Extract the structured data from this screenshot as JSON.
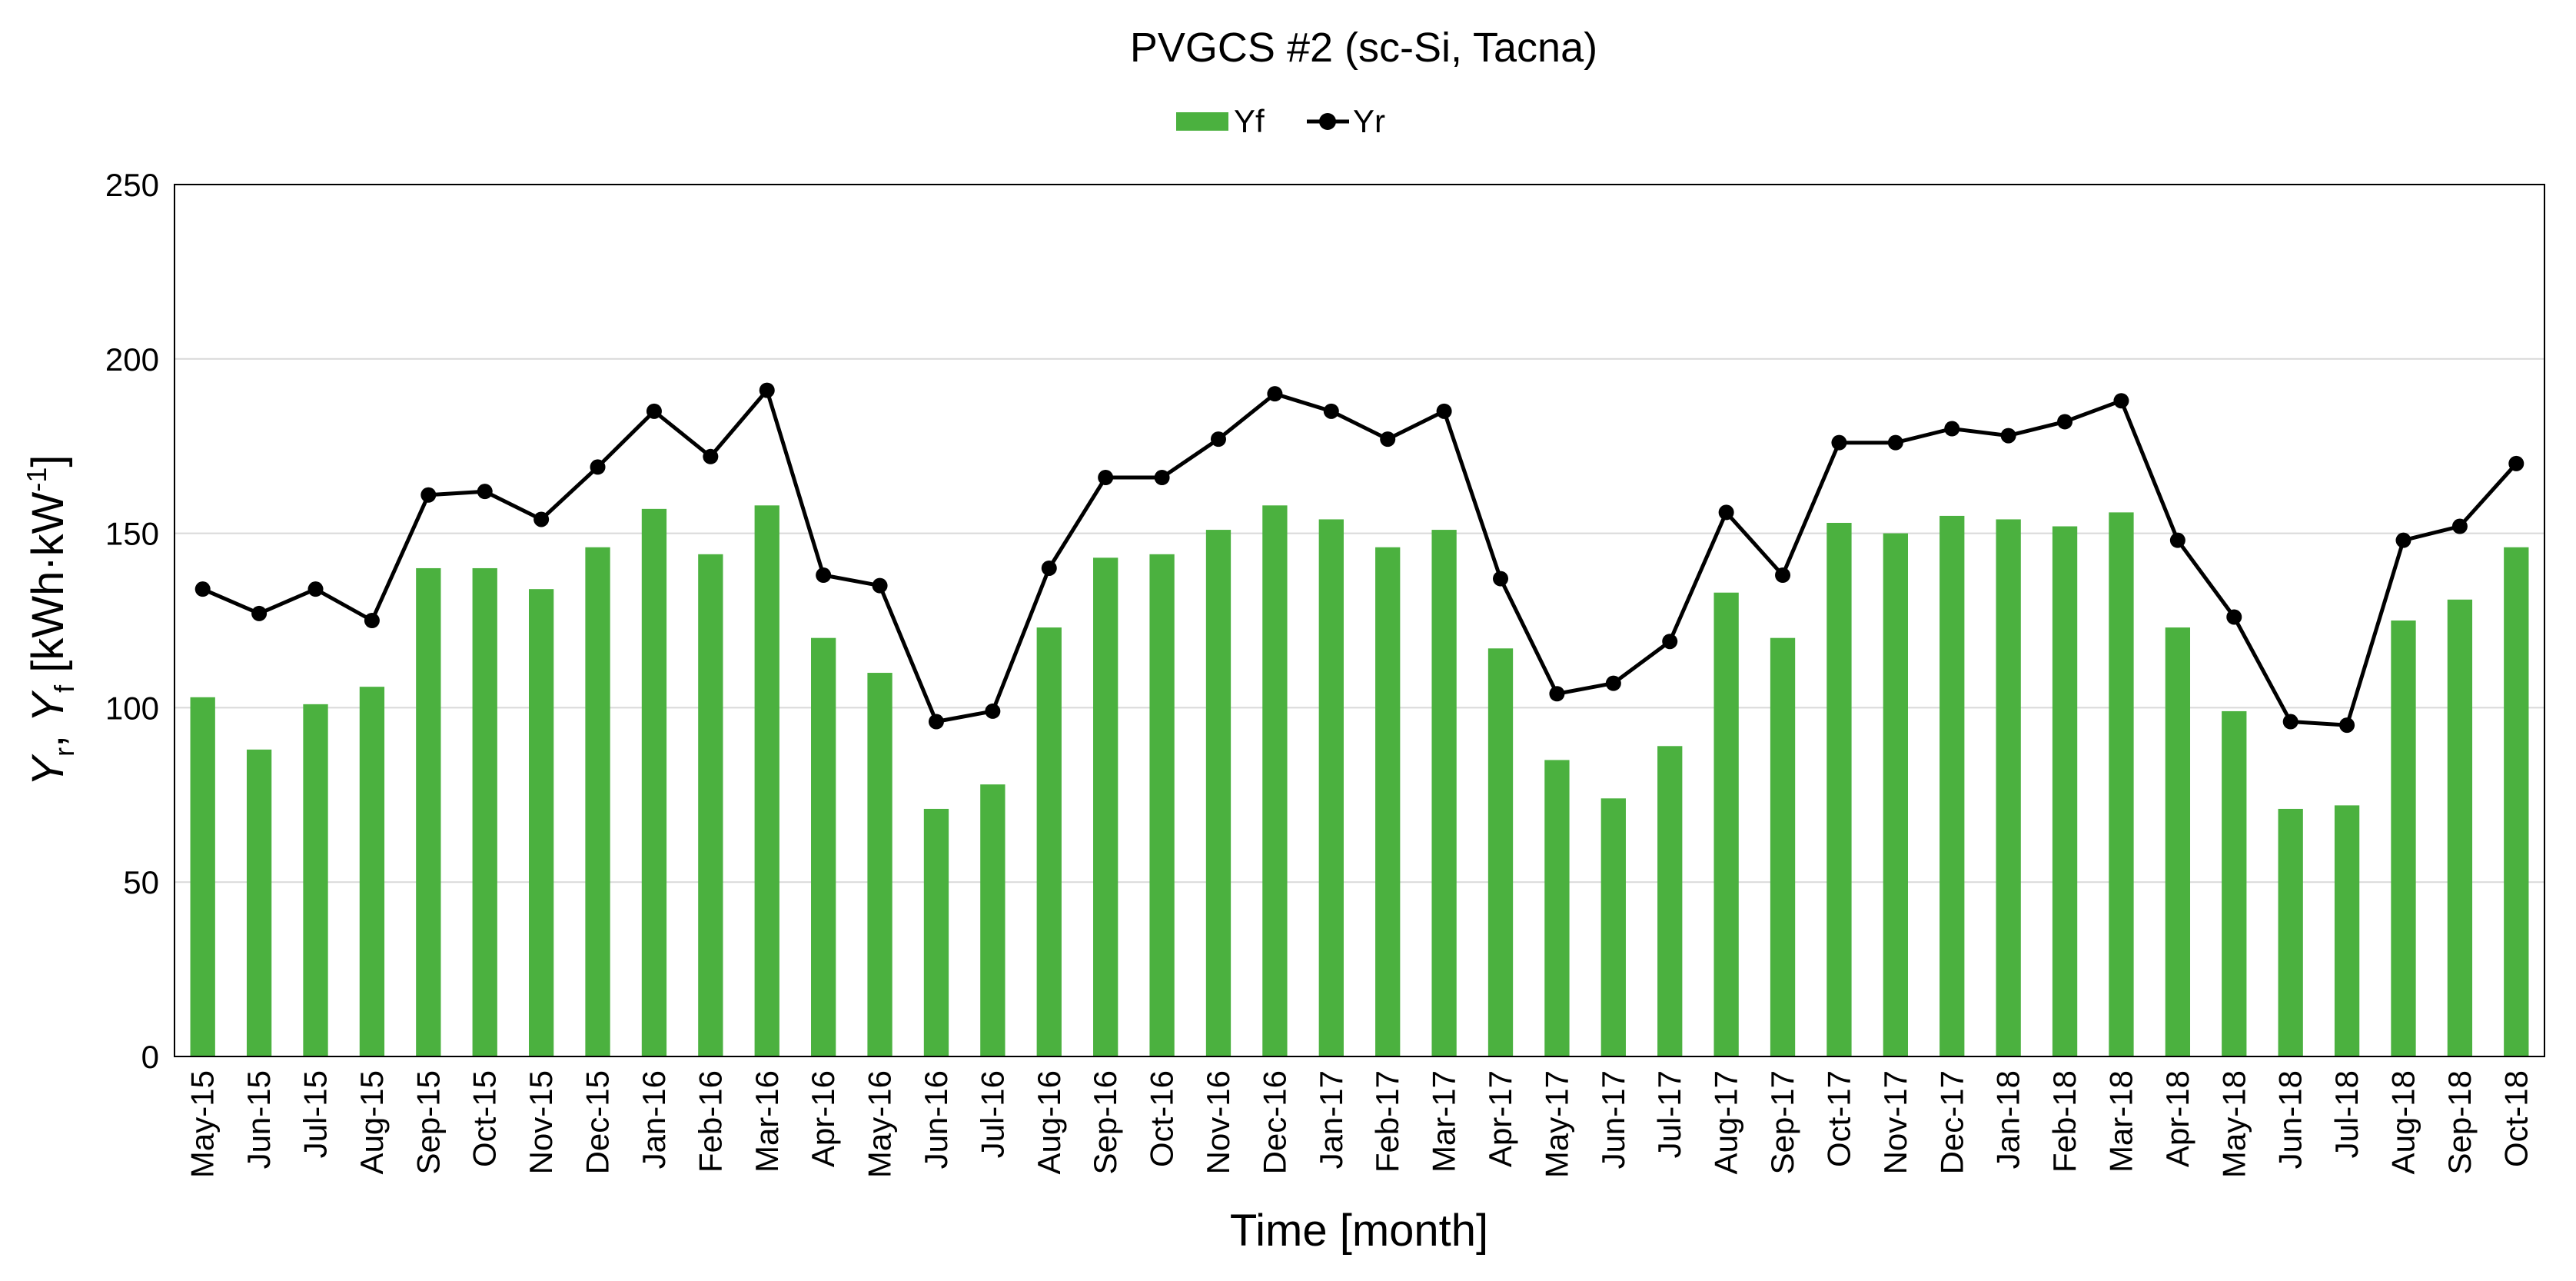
{
  "chart_data": {
    "type": "bar",
    "title": "PVGCS #2 (sc-Si, Tacna)",
    "xlabel": "Time [month]",
    "ylabel": {
      "y_letter": "Y",
      "r_sub": "r",
      "comma": ", ",
      "f_sub": "f",
      "unit_start": " [kWh·kW",
      "unit_exp": "-1",
      "unit_end": "]"
    },
    "ylim": [
      0,
      250
    ],
    "yticks": [
      "0",
      "50",
      "100",
      "150",
      "200",
      "250"
    ],
    "grid": true,
    "legend_position": "top-center",
    "colors": {
      "Yf": "#4bb13f",
      "Yr": "#000000",
      "grid": "#d9d9d9",
      "frame": "#000000"
    },
    "categories": [
      "May-15",
      "Jun-15",
      "Jul-15",
      "Aug-15",
      "Sep-15",
      "Oct-15",
      "Nov-15",
      "Dec-15",
      "Jan-16",
      "Feb-16",
      "Mar-16",
      "Apr-16",
      "May-16",
      "Jun-16",
      "Jul-16",
      "Aug-16",
      "Sep-16",
      "Oct-16",
      "Nov-16",
      "Dec-16",
      "Jan-17",
      "Feb-17",
      "Mar-17",
      "Apr-17",
      "May-17",
      "Jun-17",
      "Jul-17",
      "Aug-17",
      "Sep-17",
      "Oct-17",
      "Nov-17",
      "Dec-17",
      "Jan-18",
      "Feb-18",
      "Mar-18",
      "Apr-18",
      "May-18",
      "Jun-18",
      "Jul-18",
      "Aug-18",
      "Sep-18",
      "Oct-18"
    ],
    "series": [
      {
        "name": "Yf",
        "type": "bar",
        "values": [
          103,
          88,
          101,
          106,
          140,
          140,
          134,
          146,
          157,
          144,
          158,
          120,
          110,
          71,
          78,
          123,
          143,
          144,
          151,
          158,
          154,
          146,
          151,
          117,
          85,
          74,
          89,
          133,
          120,
          153,
          150,
          155,
          154,
          152,
          156,
          123,
          99,
          71,
          72,
          125,
          131,
          146
        ]
      },
      {
        "name": "Yr",
        "type": "line-marker",
        "values": [
          134,
          127,
          134,
          125,
          161,
          162,
          154,
          169,
          185,
          172,
          191,
          138,
          135,
          96,
          99,
          140,
          166,
          166,
          177,
          190,
          185,
          177,
          185,
          137,
          104,
          107,
          119,
          156,
          138,
          176,
          176,
          180,
          178,
          182,
          188,
          148,
          126,
          96,
          95,
          148,
          152,
          170
        ]
      }
    ]
  }
}
